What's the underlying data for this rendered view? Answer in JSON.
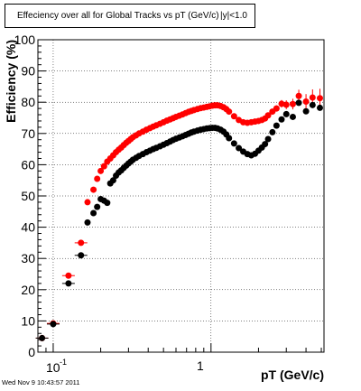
{
  "chart_data": {
    "type": "scatter",
    "title": "Effeciency over all for Global Tracks vs pT (GeV/c)",
    "title_overlay": "|y|<1.0",
    "xlabel": "pT (GeV/c)",
    "ylabel": "Efficiency (%)",
    "xscale": "log",
    "xlim": [
      0.08,
      5.2
    ],
    "ylim": [
      0,
      100
    ],
    "grid": true,
    "legend": "none",
    "y_ticks": [
      "0",
      "10",
      "20",
      "30",
      "40",
      "50",
      "60",
      "70",
      "80",
      "90",
      "100"
    ],
    "x_ticks": [
      "10",
      "-1",
      "1"
    ],
    "timestamp": "Wed Nov  9 10:43:57 2011",
    "series": [
      {
        "color": "#ff0000",
        "x": [
          0.085,
          0.1,
          0.125,
          0.15,
          0.165,
          0.18,
          0.19,
          0.2,
          0.21,
          0.22,
          0.23,
          0.24,
          0.25,
          0.26,
          0.27,
          0.28,
          0.29,
          0.3,
          0.31,
          0.32,
          0.335,
          0.35,
          0.37,
          0.39,
          0.41,
          0.43,
          0.45,
          0.475,
          0.5,
          0.525,
          0.55,
          0.575,
          0.6,
          0.63,
          0.66,
          0.69,
          0.72,
          0.75,
          0.78,
          0.82,
          0.86,
          0.9,
          0.94,
          0.98,
          1.02,
          1.06,
          1.1,
          1.15,
          1.2,
          1.25,
          1.3,
          1.4,
          1.5,
          1.6,
          1.7,
          1.8,
          1.9,
          2.0,
          2.1,
          2.2,
          2.3,
          2.45,
          2.6,
          2.8,
          3.0,
          3.3,
          3.6,
          4.0,
          4.4,
          4.9
        ],
        "y": [
          4.5,
          9.2,
          24.5,
          35,
          48,
          52,
          55.5,
          58,
          59.5,
          61,
          62,
          63,
          64,
          64.8,
          65.5,
          66.3,
          67,
          67.6,
          68.2,
          68.8,
          69.4,
          70,
          70.6,
          71.2,
          71.7,
          72.2,
          72.6,
          73.1,
          73.6,
          74.1,
          74.5,
          74.9,
          75.3,
          75.7,
          76.1,
          76.5,
          76.9,
          77.2,
          77.5,
          77.8,
          78.1,
          78.3,
          78.5,
          78.7,
          78.9,
          79,
          79,
          78.8,
          78.4,
          77.8,
          77,
          75.5,
          74.3,
          73.6,
          73.4,
          73.6,
          73.8,
          74,
          74.3,
          74.8,
          75.8,
          77,
          78,
          79.5,
          79.2,
          79.4,
          82,
          80.2,
          81.5,
          81.3
        ],
        "yerr": [
          0.8,
          0.8,
          0.8,
          0.5,
          0.5,
          0.4,
          0.4,
          0.3,
          0.3,
          0.3,
          0.3,
          0.3,
          0.2,
          0.2,
          0.2,
          0.2,
          0.2,
          0.2,
          0.2,
          0.2,
          0.2,
          0.2,
          0.2,
          0.2,
          0.2,
          0.2,
          0.2,
          0.2,
          0.2,
          0.2,
          0.2,
          0.2,
          0.2,
          0.2,
          0.2,
          0.2,
          0.2,
          0.2,
          0.2,
          0.2,
          0.2,
          0.2,
          0.2,
          0.2,
          0.2,
          0.2,
          0.2,
          0.2,
          0.2,
          0.3,
          0.3,
          0.3,
          0.4,
          0.4,
          0.5,
          0.5,
          0.5,
          0.6,
          0.6,
          0.7,
          0.8,
          0.9,
          1.0,
          1.2,
          1.4,
          1.7,
          2.0,
          2.4,
          2.6,
          3.0
        ]
      },
      {
        "color": "#000000",
        "x": [
          0.085,
          0.1,
          0.125,
          0.15,
          0.165,
          0.18,
          0.19,
          0.2,
          0.21,
          0.22,
          0.23,
          0.24,
          0.25,
          0.26,
          0.27,
          0.28,
          0.29,
          0.3,
          0.31,
          0.32,
          0.335,
          0.35,
          0.37,
          0.39,
          0.41,
          0.43,
          0.45,
          0.475,
          0.5,
          0.525,
          0.55,
          0.575,
          0.6,
          0.63,
          0.66,
          0.69,
          0.72,
          0.75,
          0.78,
          0.82,
          0.86,
          0.9,
          0.94,
          0.98,
          1.02,
          1.06,
          1.1,
          1.15,
          1.2,
          1.25,
          1.3,
          1.4,
          1.5,
          1.6,
          1.7,
          1.8,
          1.9,
          2.0,
          2.1,
          2.2,
          2.3,
          2.45,
          2.6,
          2.8,
          3.0,
          3.3,
          3.6,
          4.0,
          4.4,
          4.9
        ],
        "y": [
          4.5,
          9.0,
          22,
          31,
          41.5,
          44.5,
          46.5,
          49,
          48.5,
          47.8,
          54,
          55,
          56.5,
          57.5,
          58.2,
          59,
          59.7,
          60.4,
          61,
          61.6,
          62.2,
          62.8,
          63.4,
          64,
          64.5,
          65,
          65.4,
          65.9,
          66.4,
          66.9,
          67.4,
          67.9,
          68.3,
          68.7,
          69.1,
          69.5,
          69.9,
          70.3,
          70.6,
          70.9,
          71.2,
          71.4,
          71.6,
          71.7,
          71.8,
          71.8,
          71.6,
          71.2,
          70.6,
          69.7,
          68.5,
          66.8,
          65.3,
          64.2,
          63.4,
          63,
          63.5,
          64.5,
          65.5,
          66.6,
          68.2,
          70.4,
          72.5,
          74.5,
          76.2,
          75.3,
          79.8,
          77.1,
          79.1,
          78.2
        ]
      }
    ]
  }
}
